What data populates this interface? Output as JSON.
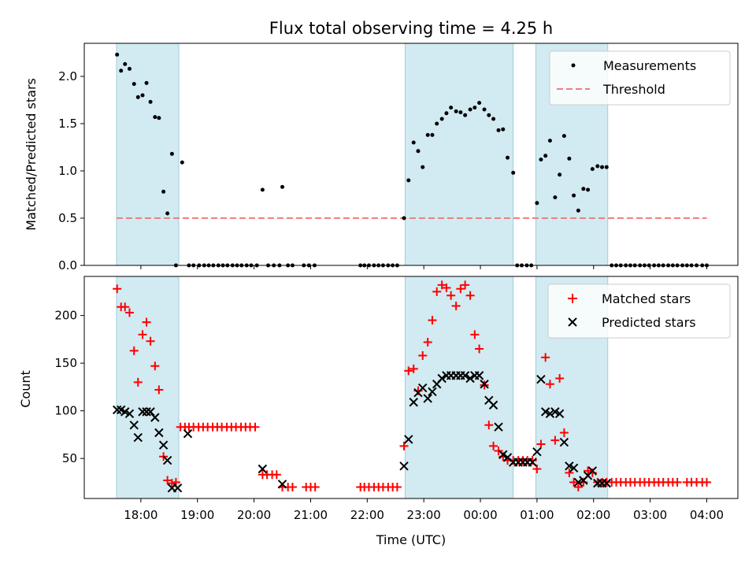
{
  "chart_data": [
    {
      "type": "scatter",
      "title": "Flux total observing time = 4.25 h",
      "ylabel": "Matched/Predicted stars",
      "xlabel": "",
      "ylim": [
        0,
        2.35
      ],
      "xlim_hours": [
        17.0,
        28.55
      ],
      "yticks": [
        0.0,
        0.5,
        1.0,
        1.5,
        2.0
      ],
      "ytick_labels": [
        "0.0",
        "0.5",
        "1.0",
        "1.5",
        "2.0"
      ],
      "legend": {
        "location": "top-right",
        "entries": [
          "Measurements",
          "Threshold"
        ]
      },
      "threshold": {
        "name": "Threshold",
        "value": 0.5,
        "x_start": 17.57,
        "x_end": 28.0,
        "color": "#f08080"
      },
      "shaded_spans_hours": [
        [
          17.57,
          18.67
        ],
        [
          22.67,
          24.58
        ],
        [
          24.98,
          26.25
        ]
      ],
      "shade_color": "#add8e6",
      "series": [
        {
          "name": "Measurements",
          "color": "#000000",
          "x": [
            17.58,
            17.65,
            17.72,
            17.8,
            17.88,
            17.95,
            18.03,
            18.1,
            18.17,
            18.25,
            18.32,
            18.4,
            18.47,
            18.55,
            18.62,
            18.73,
            18.85,
            18.93,
            19.03,
            19.12,
            19.2,
            19.28,
            19.37,
            19.45,
            19.53,
            19.62,
            19.7,
            19.78,
            19.87,
            19.95,
            20.05,
            20.15,
            20.25,
            20.35,
            20.45,
            20.5,
            20.6,
            20.68,
            20.88,
            20.97,
            21.07,
            21.88,
            21.95,
            22.03,
            22.12,
            22.2,
            22.28,
            22.37,
            22.45,
            22.53,
            22.65,
            22.73,
            22.82,
            22.9,
            22.98,
            23.07,
            23.15,
            23.23,
            23.32,
            23.4,
            23.48,
            23.57,
            23.65,
            23.73,
            23.82,
            23.9,
            23.98,
            24.07,
            24.15,
            24.23,
            24.32,
            24.4,
            24.48,
            24.58,
            24.65,
            24.73,
            24.82,
            24.9,
            25.0,
            25.07,
            25.15,
            25.23,
            25.32,
            25.4,
            25.48,
            25.57,
            25.65,
            25.73,
            25.82,
            25.9,
            25.98,
            26.07,
            26.15,
            26.23,
            26.32,
            26.4,
            26.48,
            26.57,
            26.65,
            26.73,
            26.82,
            26.9,
            26.98,
            27.07,
            27.15,
            27.23,
            27.32,
            27.4,
            27.48,
            27.57,
            27.65,
            27.73,
            27.82,
            27.92,
            28.0
          ],
          "y": [
            2.23,
            2.06,
            2.13,
            2.08,
            1.92,
            1.78,
            1.8,
            1.93,
            1.73,
            1.57,
            1.56,
            0.78,
            0.55,
            1.18,
            0.0,
            1.09,
            0.0,
            0.0,
            0.0,
            0.0,
            0.0,
            0.0,
            0.0,
            0.0,
            0.0,
            0.0,
            0.0,
            0.0,
            0.0,
            0.0,
            0.0,
            0.8,
            0.0,
            0.0,
            0.0,
            0.83,
            0.0,
            0.0,
            0.0,
            0.0,
            0.0,
            0.0,
            0.0,
            0.0,
            0.0,
            0.0,
            0.0,
            0.0,
            0.0,
            0.0,
            0.5,
            0.9,
            1.3,
            1.21,
            1.04,
            1.38,
            1.38,
            1.5,
            1.55,
            1.61,
            1.67,
            1.63,
            1.62,
            1.59,
            1.65,
            1.67,
            1.72,
            1.65,
            1.59,
            1.55,
            1.43,
            1.44,
            1.14,
            0.98,
            0.0,
            0.0,
            0.0,
            0.0,
            0.66,
            1.12,
            1.16,
            1.32,
            0.72,
            0.96,
            1.37,
            1.13,
            0.74,
            0.58,
            0.81,
            0.8,
            1.02,
            1.05,
            1.04,
            1.04,
            0.0,
            0.0,
            0.0,
            0.0,
            0.0,
            0.0,
            0.0,
            0.0,
            0.0,
            0.0,
            0.0,
            0.0,
            0.0,
            0.0,
            0.0,
            0.0,
            0.0,
            0.0,
            0.0,
            0.0,
            0.0
          ]
        }
      ]
    },
    {
      "type": "scatter",
      "title": "",
      "xlabel": "Time (UTC)",
      "ylabel": "Count",
      "ylim": [
        8,
        241
      ],
      "xlim_hours": [
        17.0,
        28.55
      ],
      "yticks": [
        50,
        100,
        150,
        200
      ],
      "ytick_labels": [
        "50",
        "100",
        "150",
        "200"
      ],
      "xticks_hours": [
        18,
        19,
        20,
        21,
        22,
        23,
        24,
        25,
        26,
        27,
        28
      ],
      "xtick_labels": [
        "18:00",
        "19:00",
        "20:00",
        "21:00",
        "22:00",
        "23:00",
        "00:00",
        "01:00",
        "02:00",
        "03:00",
        "04:00"
      ],
      "legend": {
        "location": "top-right",
        "entries": [
          "Matched stars",
          "Predicted stars"
        ]
      },
      "shaded_spans_hours": [
        [
          17.57,
          18.67
        ],
        [
          22.67,
          24.58
        ],
        [
          24.98,
          26.25
        ]
      ],
      "shade_color": "#add8e6",
      "series": [
        {
          "name": "Matched stars",
          "marker": "plus",
          "color": "#ff0000",
          "x": [
            17.58,
            17.65,
            17.72,
            17.8,
            17.88,
            17.95,
            18.03,
            18.1,
            18.17,
            18.25,
            18.32,
            18.4,
            18.47,
            18.55,
            18.62,
            18.7,
            18.78,
            18.85,
            18.93,
            19.02,
            19.1,
            19.18,
            19.27,
            19.35,
            19.43,
            19.52,
            19.6,
            19.68,
            19.77,
            19.85,
            19.93,
            20.02,
            20.15,
            20.23,
            20.32,
            20.4,
            20.5,
            20.6,
            20.68,
            20.92,
            21.0,
            21.08,
            21.88,
            21.95,
            22.03,
            22.12,
            22.2,
            22.28,
            22.37,
            22.45,
            22.53,
            22.65,
            22.73,
            22.82,
            22.9,
            22.98,
            23.07,
            23.15,
            23.23,
            23.32,
            23.4,
            23.48,
            23.57,
            23.65,
            23.73,
            23.82,
            23.9,
            23.98,
            24.07,
            24.15,
            24.23,
            24.32,
            24.4,
            24.48,
            24.58,
            24.67,
            24.75,
            24.83,
            24.92,
            25.0,
            25.07,
            25.15,
            25.23,
            25.32,
            25.4,
            25.48,
            25.57,
            25.65,
            25.73,
            25.82,
            25.9,
            25.98,
            26.07,
            26.15,
            26.23,
            26.32,
            26.4,
            26.48,
            26.57,
            26.65,
            26.73,
            26.82,
            26.9,
            26.98,
            27.07,
            27.15,
            27.23,
            27.32,
            27.4,
            27.48,
            27.65,
            27.73,
            27.82,
            27.92,
            28.0
          ],
          "y": [
            228,
            209,
            209,
            203,
            163,
            130,
            180,
            193,
            173,
            147,
            122,
            52,
            27,
            24,
            25,
            83,
            83,
            83,
            83,
            83,
            83,
            83,
            83,
            83,
            83,
            83,
            83,
            83,
            83,
            83,
            83,
            83,
            33,
            33,
            33,
            33,
            20,
            20,
            20,
            20,
            20,
            20,
            20,
            20,
            20,
            20,
            20,
            20,
            20,
            20,
            20,
            63,
            142,
            144,
            121,
            158,
            172,
            195,
            225,
            232,
            229,
            221,
            210,
            228,
            232,
            221,
            180,
            165,
            127,
            85,
            63,
            58,
            52,
            48,
            48,
            48,
            48,
            48,
            48,
            39,
            65,
            156,
            128,
            69,
            134,
            77,
            35,
            25,
            20,
            25,
            37,
            35,
            25,
            25,
            25,
            25,
            25,
            25,
            25,
            25,
            25,
            25,
            25,
            25,
            25,
            25,
            25,
            25,
            25,
            25,
            25,
            25,
            25,
            25,
            25
          ]
        },
        {
          "name": "Predicted stars",
          "marker": "x",
          "color": "#000000",
          "x": [
            17.58,
            17.65,
            17.72,
            17.8,
            17.88,
            17.95,
            18.03,
            18.1,
            18.17,
            18.25,
            18.32,
            18.4,
            18.47,
            18.55,
            18.65,
            18.83,
            20.15,
            20.5,
            22.65,
            22.73,
            22.82,
            22.9,
            22.98,
            23.07,
            23.15,
            23.23,
            23.32,
            23.4,
            23.48,
            23.57,
            23.65,
            23.73,
            23.82,
            23.9,
            23.98,
            24.07,
            24.15,
            24.23,
            24.32,
            24.4,
            24.48,
            24.58,
            24.67,
            24.75,
            24.83,
            24.92,
            25.0,
            25.07,
            25.15,
            25.23,
            25.32,
            25.4,
            25.48,
            25.57,
            25.65,
            25.73,
            25.82,
            25.9,
            25.98,
            26.07,
            26.15,
            26.23
          ],
          "y": [
            101,
            101,
            99,
            97,
            85,
            72,
            99,
            99,
            99,
            93,
            77,
            64,
            48,
            19,
            19,
            76,
            39,
            23,
            42,
            70,
            109,
            119,
            124,
            113,
            120,
            128,
            134,
            137,
            137,
            137,
            137,
            137,
            134,
            137,
            137,
            128,
            111,
            106,
            83,
            54,
            51,
            46,
            46,
            46,
            46,
            46,
            57,
            133,
            99,
            97,
            99,
            97,
            67,
            42,
            40,
            25,
            27,
            32,
            37,
            24,
            24,
            24
          ]
        }
      ]
    }
  ]
}
